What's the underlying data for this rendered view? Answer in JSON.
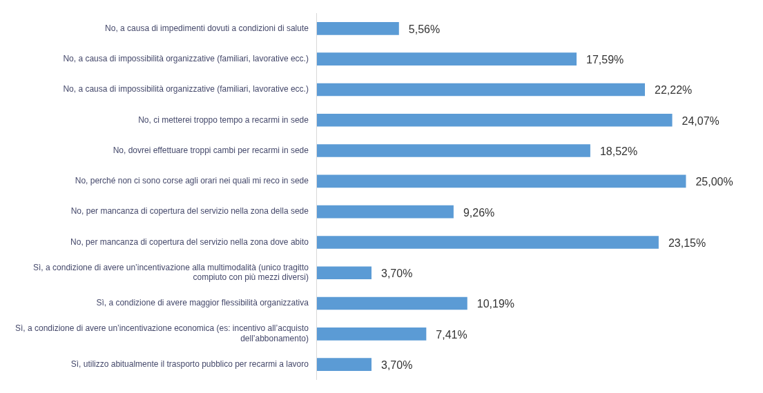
{
  "chart_data": {
    "type": "bar",
    "orientation": "horizontal",
    "categories": [
      "No, a causa di impedimenti dovuti a condizioni di salute",
      "No, a causa di impossibilità organizzative (familiari, lavorative ecc.)",
      "No, a causa di impossibilità organizzative (familiari, lavorative ecc.)",
      "No, ci metterei troppo tempo a recarmi in sede",
      "No, dovrei effettuare troppi cambi per recarmi in sede",
      "No, perché non ci sono corse agli orari nei quali mi reco in sede",
      "No, per mancanza di copertura del servizio nella zona della sede",
      "No, per mancanza di copertura del servizio nella zona dove abito",
      "Sì, a condizione di avere un’incentivazione alla multimodalità (unico tragitto compiuto con più mezzi diversi)",
      "Sì, a condizione di avere maggior flessibilità organizzativa",
      "Sì, a condizione di avere un’incentivazione economica (es: incentivo all’acquisto dell’abbonamento)",
      "Sì, utilizzo abitualmente il trasporto pubblico per recarmi a lavoro"
    ],
    "values": [
      5.56,
      17.59,
      22.22,
      24.07,
      18.52,
      25.0,
      9.26,
      23.15,
      3.7,
      10.19,
      7.41,
      3.7
    ],
    "value_labels": [
      "5,56%",
      "17,59%",
      "22,22%",
      "24,07%",
      "18,52%",
      "25,00%",
      "9,26%",
      "23,15%",
      "3,70%",
      "10,19%",
      "7,41%",
      "3,70%"
    ],
    "color": "#5b9bd5",
    "grid": false,
    "legend": false
  }
}
